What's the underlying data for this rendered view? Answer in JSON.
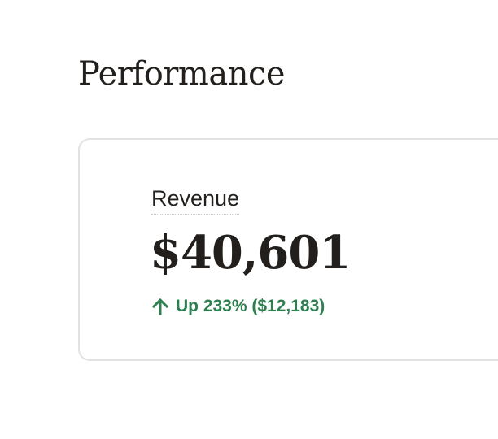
{
  "page": {
    "title": "Performance"
  },
  "revenue_card": {
    "label": "Revenue",
    "value": "$40,601",
    "change": {
      "direction": "up",
      "icon": "arrow-up-icon",
      "text": "Up 233% ($12,183)",
      "color": "#2e8050"
    }
  }
}
